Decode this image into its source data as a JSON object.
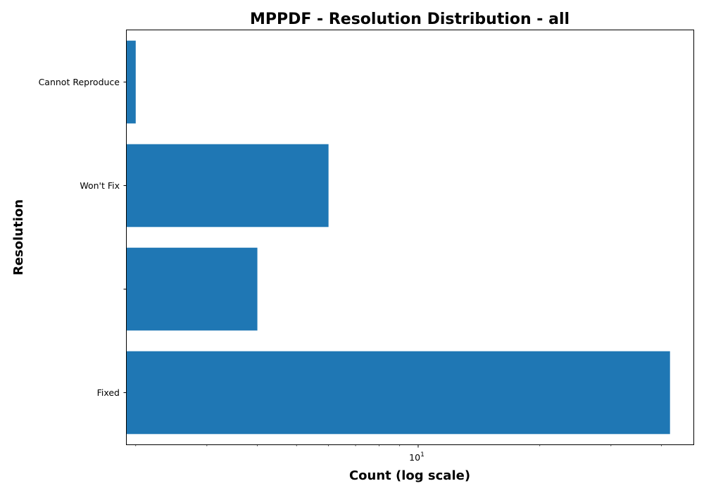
{
  "chart_data": {
    "type": "bar",
    "orientation": "horizontal",
    "title": "MPPDF - Resolution Distribution - all",
    "xlabel": "Count (log scale)",
    "ylabel": "Resolution",
    "xscale": "log",
    "xlim": [
      1.9,
      48
    ],
    "categories": [
      "Cannot Reproduce",
      "Won't Fix",
      "",
      "Fixed"
    ],
    "values": [
      2,
      6,
      4,
      42
    ],
    "bar_color": "#1f77b4",
    "grid": false,
    "legend": "none",
    "x_major_tick": {
      "base": "10",
      "exponent": "1",
      "value": 10
    }
  }
}
